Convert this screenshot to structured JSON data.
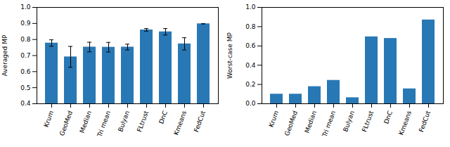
{
  "chart_data": [
    {
      "type": "bar",
      "categories": [
        "Krum",
        "GeoMed",
        "Median",
        "Tri mean",
        "Bulyan",
        "FLtrust",
        "DnC",
        "Kmeans",
        "FedCut"
      ],
      "values": [
        0.778,
        0.692,
        0.753,
        0.752,
        0.753,
        0.86,
        0.848,
        0.773,
        0.898
      ],
      "errors": [
        0.02,
        0.065,
        0.03,
        0.03,
        0.018,
        0.008,
        0.02,
        0.038,
        0.0
      ],
      "color": "#2878b5",
      "ylabel": "Averaged MP",
      "ylim": [
        0.4,
        1.0
      ],
      "yticks": [
        0.4,
        0.5,
        0.6,
        0.7,
        0.8,
        0.9,
        {
          "value": 1.0,
          "label": "1.0"
        }
      ]
    },
    {
      "type": "bar",
      "categories": [
        "Krum",
        "GeoMed",
        "Median",
        "Tri mean",
        "Bulyan",
        "FLtrust",
        "DnC",
        "Kmeans",
        "FedCut"
      ],
      "values": [
        0.1,
        0.1,
        0.178,
        0.243,
        0.063,
        0.695,
        0.678,
        0.155,
        0.87
      ],
      "color": "#2878b5",
      "ylabel": "Worst-case MP",
      "ylim": [
        0.0,
        1.0
      ],
      "yticks": [
        {
          "value": 0.0,
          "label": "0.0"
        },
        0.2,
        0.4,
        0.6,
        0.8,
        {
          "value": 1.0,
          "label": "1.0"
        }
      ]
    }
  ]
}
